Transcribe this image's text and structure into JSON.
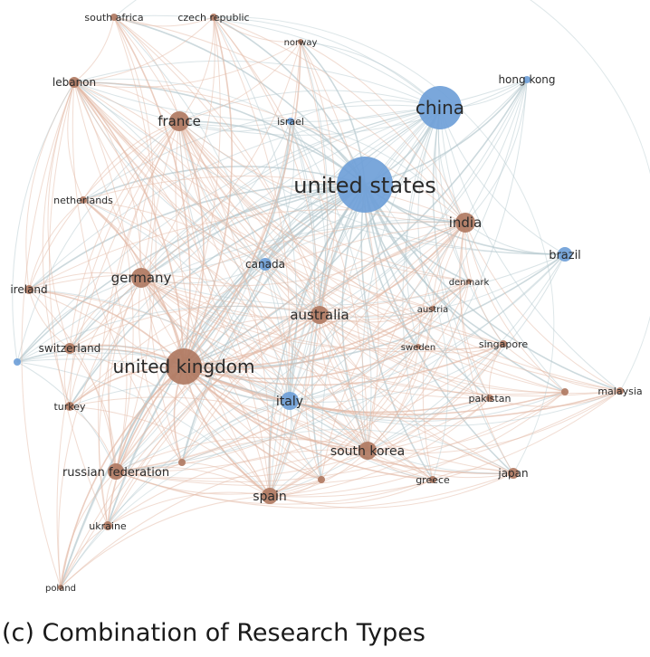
{
  "caption": "(c) Combination of Research Types",
  "colors": {
    "orange_cluster": "#b07a62",
    "blue_cluster": "#6f9fd8",
    "orange_edge": "#e3b9a6",
    "blue_edge": "#b6c9cf"
  },
  "nodes": [
    {
      "id": "united_states",
      "label": "united states",
      "cluster": "blue"
    },
    {
      "id": "china",
      "label": "china",
      "cluster": "blue"
    },
    {
      "id": "hong_kong",
      "label": "hong kong",
      "cluster": "blue"
    },
    {
      "id": "israel",
      "label": "israel",
      "cluster": "blue"
    },
    {
      "id": "canada",
      "label": "canada",
      "cluster": "blue"
    },
    {
      "id": "brazil",
      "label": "brazil",
      "cluster": "blue"
    },
    {
      "id": "italy",
      "label": "italy",
      "cluster": "blue"
    },
    {
      "id": "united_kingdom",
      "label": "united kingdom",
      "cluster": "orange"
    },
    {
      "id": "france",
      "label": "france",
      "cluster": "orange"
    },
    {
      "id": "germany",
      "label": "germany",
      "cluster": "orange"
    },
    {
      "id": "australia",
      "label": "australia",
      "cluster": "orange"
    },
    {
      "id": "india",
      "label": "india",
      "cluster": "orange"
    },
    {
      "id": "south_korea",
      "label": "south korea",
      "cluster": "orange"
    },
    {
      "id": "spain",
      "label": "spain",
      "cluster": "orange"
    },
    {
      "id": "russian_federation",
      "label": "russian federation",
      "cluster": "orange"
    },
    {
      "id": "lebanon",
      "label": "lebanon",
      "cluster": "orange"
    },
    {
      "id": "south_africa",
      "label": "south africa",
      "cluster": "orange"
    },
    {
      "id": "czech_republic",
      "label": "czech republic",
      "cluster": "orange"
    },
    {
      "id": "norway",
      "label": "norway",
      "cluster": "orange"
    },
    {
      "id": "netherlands",
      "label": "netherlands",
      "cluster": "orange"
    },
    {
      "id": "ireland",
      "label": "ireland",
      "cluster": "orange"
    },
    {
      "id": "switzerland",
      "label": "switzerland",
      "cluster": "orange"
    },
    {
      "id": "turkey",
      "label": "turkey",
      "cluster": "orange"
    },
    {
      "id": "ukraine",
      "label": "ukraine",
      "cluster": "orange"
    },
    {
      "id": "poland",
      "label": "poland",
      "cluster": "orange"
    },
    {
      "id": "denmark",
      "label": "denmark",
      "cluster": "orange"
    },
    {
      "id": "austria",
      "label": "austria",
      "cluster": "orange"
    },
    {
      "id": "sweden",
      "label": "sweden",
      "cluster": "orange"
    },
    {
      "id": "singapore",
      "label": "singapore",
      "cluster": "orange"
    },
    {
      "id": "pakistan",
      "label": "pakistan",
      "cluster": "orange"
    },
    {
      "id": "malaysia",
      "label": "malaysia",
      "cluster": "orange"
    },
    {
      "id": "greece",
      "label": "greece",
      "cluster": "orange"
    },
    {
      "id": "japan",
      "label": "japan",
      "cluster": "orange"
    },
    {
      "id": "unlabeled_1",
      "label": "",
      "cluster": "blue"
    },
    {
      "id": "unlabeled_2",
      "label": "",
      "cluster": "orange"
    },
    {
      "id": "unlabeled_3",
      "label": "",
      "cluster": "orange"
    },
    {
      "id": "unlabeled_4",
      "label": "",
      "cluster": "orange"
    }
  ]
}
